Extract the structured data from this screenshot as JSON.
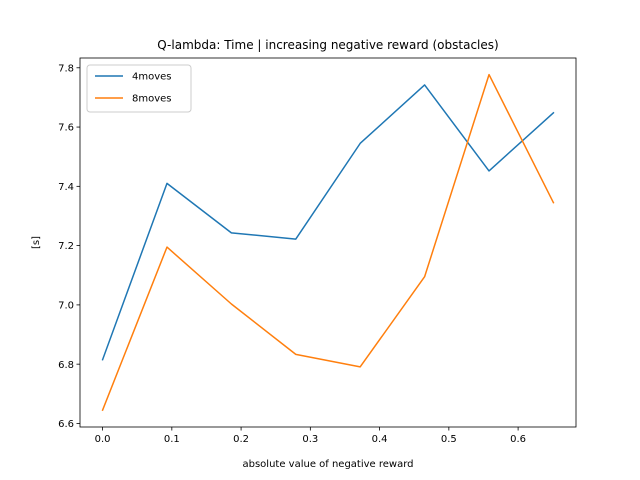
{
  "chart_data": {
    "type": "line",
    "title": "Q-lambda: Time | increasing negative reward (obstacles)",
    "xlabel": "absolute value of negative reward",
    "ylabel": "[s]",
    "x": [
      0.0,
      0.093,
      0.186,
      0.279,
      0.372,
      0.465,
      0.558,
      0.651
    ],
    "series": [
      {
        "name": "4moves",
        "color": "#1f77b4",
        "values": [
          6.815,
          7.41,
          7.243,
          7.222,
          7.545,
          7.742,
          7.452,
          7.648
        ]
      },
      {
        "name": "8moves",
        "color": "#ff7f0e",
        "values": [
          6.645,
          7.195,
          7.003,
          6.833,
          6.791,
          7.095,
          7.777,
          7.345
        ]
      }
    ],
    "xlim": [
      -0.0326,
      0.6836
    ],
    "ylim": [
      6.588,
      7.833
    ],
    "xticks": [
      0.0,
      0.1,
      0.2,
      0.3,
      0.4,
      0.5,
      0.6
    ],
    "yticks": [
      6.6,
      6.8,
      7.0,
      7.2,
      7.4,
      7.6,
      7.8
    ],
    "xtick_labels": [
      "0.0",
      "0.1",
      "0.2",
      "0.3",
      "0.4",
      "0.5",
      "0.6"
    ],
    "ytick_labels": [
      "6.6",
      "6.8",
      "7.0",
      "7.2",
      "7.4",
      "7.6",
      "7.8"
    ],
    "grid": false,
    "legend_position": "upper-left"
  }
}
